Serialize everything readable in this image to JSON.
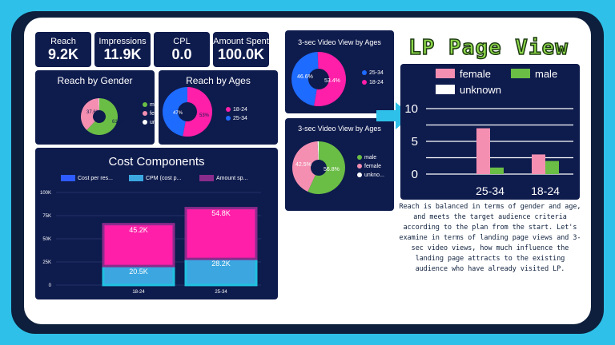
{
  "kpis": [
    {
      "label": "Reach",
      "value": "9.2K"
    },
    {
      "label": "Impressions",
      "value": "11.9K"
    },
    {
      "label": "CPL",
      "value": "0.0"
    },
    {
      "label": "Amount Spent",
      "value": "100.0K"
    }
  ],
  "reach_by_gender": {
    "title": "Reach by Gender",
    "legend": [
      "male",
      "female",
      "unkno..."
    ],
    "colors": {
      "male": "#6abd45",
      "female": "#f48fb1",
      "unknown": "#ffffff"
    },
    "slice_labels": {
      "male": "61.9%",
      "female": "37.6%"
    }
  },
  "reach_by_ages": {
    "title": "Reach by Ages",
    "legend": [
      "18-24",
      "25-34"
    ],
    "colors": {
      "18-24": "#ff1fa8",
      "25-34": "#1e6bff"
    },
    "slice_labels": {
      "25-34": "47%",
      "18-24": "53%"
    }
  },
  "cost_components": {
    "title": "Cost Components",
    "legend": [
      "Cost per res...",
      "CPM (cost p...",
      "Amount sp..."
    ],
    "legend_colors": [
      "#2e5bff",
      "#3ba6e0",
      "#8a2c8c"
    ],
    "y_ticks": [
      "100K",
      "75K",
      "50K",
      "25K",
      "0"
    ],
    "categories": [
      "18-24",
      "25-34"
    ],
    "bar_labels": {
      "18-24": {
        "bottom": "20.5K",
        "top": "45.2K"
      },
      "25-34": {
        "bottom": "28.2K",
        "top": "54.8K"
      }
    }
  },
  "video_ages": {
    "title": "3-sec Video View by Ages",
    "legend": [
      "25-34",
      "18-24"
    ],
    "colors": {
      "25-34": "#1e6bff",
      "18-24": "#ff1fa8"
    },
    "slice_labels": {
      "25-34": "46.6%",
      "18-24": "53.4%"
    }
  },
  "video_gender": {
    "title": "3-sec Video View by Ages",
    "legend": [
      "male",
      "female",
      "unkno..."
    ],
    "colors": {
      "male": "#6abd45",
      "female": "#f48fb1",
      "unknown": "#ffffff"
    },
    "slice_labels": {
      "female": "42.5%",
      "male": "56.8%"
    }
  },
  "lp": {
    "title": "LP Page View",
    "legend": [
      "female",
      "male",
      "unknown"
    ],
    "colors": {
      "female": "#f48fb1",
      "male": "#6abd45",
      "unknown": "#ffffff"
    },
    "y_ticks": [
      "10",
      "5",
      "0"
    ],
    "categories": [
      "25-34",
      "18-24"
    ]
  },
  "note": "Reach is balanced in terms of gender and age, and meets the target audience criteria according to the plan from the start. Let's examine in terms of landing page views and 3-sec video views, how much influence the landing page attracts to the existing audience who have already visited LP.",
  "chart_data": [
    {
      "type": "pie",
      "title": "Reach by Gender",
      "categories": [
        "male",
        "female",
        "unknown"
      ],
      "values": [
        61.9,
        37.6,
        0.5
      ]
    },
    {
      "type": "pie",
      "title": "Reach by Ages",
      "categories": [
        "18-24",
        "25-34"
      ],
      "values": [
        53,
        47
      ]
    },
    {
      "type": "bar",
      "title": "Cost Components",
      "categories": [
        "18-24",
        "25-34"
      ],
      "series": [
        {
          "name": "Cost per res...",
          "values": [
            0.1,
            0.1
          ]
        },
        {
          "name": "CPM (cost p...",
          "values": [
            20.5,
            28.2
          ]
        },
        {
          "name": "Amount sp...",
          "values": [
            45.2,
            54.8
          ]
        }
      ],
      "stacked": true,
      "ylim": [
        0,
        100
      ],
      "yunit": "K"
    },
    {
      "type": "pie",
      "title": "3-sec Video View by Ages",
      "categories": [
        "25-34",
        "18-24"
      ],
      "values": [
        46.6,
        53.4
      ]
    },
    {
      "type": "pie",
      "title": "3-sec Video View by Ages",
      "categories": [
        "male",
        "female",
        "unknown"
      ],
      "values": [
        56.8,
        42.5,
        0.7
      ]
    },
    {
      "type": "bar",
      "title": "LP Page View",
      "categories": [
        "25-34",
        "18-24"
      ],
      "series": [
        {
          "name": "female",
          "values": [
            7,
            3
          ]
        },
        {
          "name": "male",
          "values": [
            1,
            2
          ]
        },
        {
          "name": "unknown",
          "values": [
            0,
            0
          ]
        }
      ],
      "ylim": [
        0,
        10
      ]
    }
  ]
}
